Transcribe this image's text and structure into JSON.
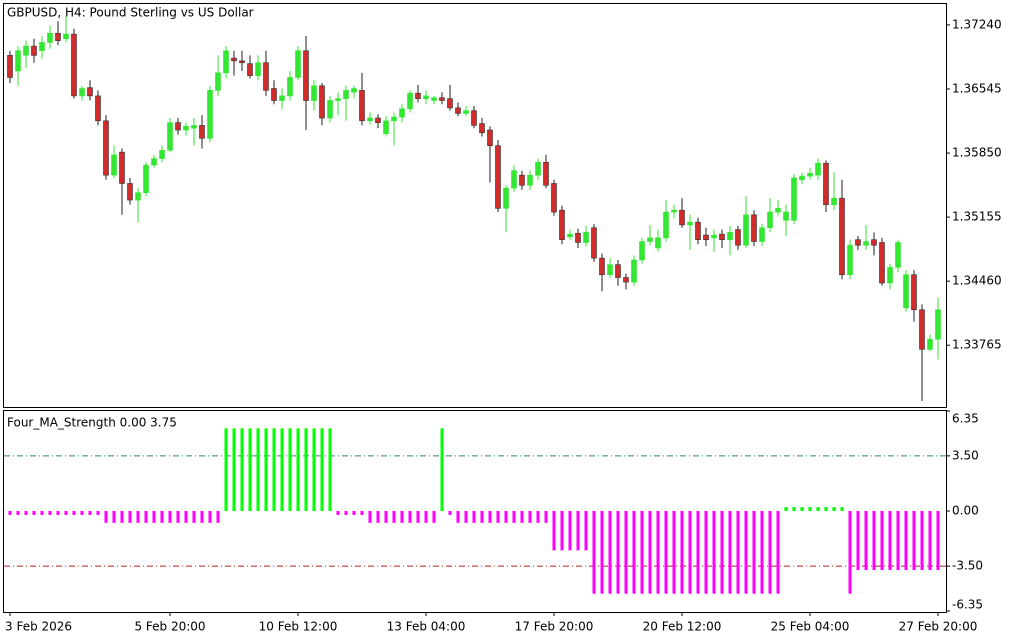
{
  "chart_data": [
    {
      "type": "candlestick",
      "title": "GBPUSD, H4:  Pound Sterling vs US Dollar",
      "categories": [
        "3 Feb 2026",
        null,
        null,
        null,
        null,
        null,
        null,
        null,
        null,
        null,
        null,
        null,
        null,
        null,
        null,
        null,
        null,
        null,
        null,
        null,
        "5 Feb 20:00",
        null,
        null,
        null,
        null,
        null,
        null,
        null,
        null,
        null,
        null,
        null,
        null,
        null,
        null,
        null,
        "10 Feb 12:00",
        null,
        null,
        null,
        null,
        null,
        null,
        null,
        null,
        null,
        null,
        null,
        null,
        null,
        null,
        null,
        "13 Feb 04:00",
        null,
        null,
        null,
        null,
        null,
        null,
        null,
        null,
        null,
        null,
        null,
        null,
        null,
        null,
        null,
        "17 Feb 20:00",
        null,
        null,
        null,
        null,
        null,
        null,
        null,
        null,
        null,
        null,
        null,
        null,
        null,
        null,
        null,
        "20 Feb 12:00",
        null,
        null,
        null,
        null,
        null,
        null,
        null,
        null,
        null,
        null,
        null,
        null,
        null,
        null,
        null,
        "25 Feb 04:00",
        null,
        null,
        null,
        null,
        null,
        null,
        null,
        null,
        null,
        null,
        null,
        null,
        null,
        null,
        null,
        "27 Feb 20:00"
      ],
      "open": [
        1.3691,
        1.3674,
        1.3691,
        1.3701,
        1.3696,
        1.3705,
        1.3715,
        1.3709,
        1.3714,
        1.3647,
        1.3656,
        1.3647,
        1.362,
        1.3561,
        1.3586,
        1.3552,
        1.3534,
        1.3542,
        1.3572,
        1.3579,
        1.3588,
        1.3618,
        1.361,
        1.3612,
        1.3615,
        1.3601,
        1.3653,
        1.3672,
        1.3688,
        1.3685,
        1.3682,
        1.3669,
        1.3683,
        1.3655,
        1.3642,
        1.3647,
        1.3667,
        1.3696,
        1.3642,
        1.3658,
        1.3623,
        1.3642,
        1.3644,
        1.3651,
        1.3653,
        1.362,
        1.3623,
        1.3606,
        1.362,
        1.3624,
        1.3633,
        1.365,
        1.3644,
        1.3642,
        1.3645,
        1.3644,
        1.3634,
        1.3628,
        1.3631,
        1.3617,
        1.361,
        1.3593,
        1.3525,
        1.3547,
        1.3561,
        1.355,
        1.3561,
        1.3575,
        1.3552,
        1.3523,
        1.3494,
        1.3498,
        1.3488,
        1.3504,
        1.3471,
        1.3453,
        1.3464,
        1.345,
        1.3445,
        1.3469,
        1.3489,
        1.3482,
        1.3493,
        1.3521,
        1.3523,
        1.3507,
        1.351,
        1.3496,
        1.3493,
        1.3497,
        1.3491,
        1.3502,
        1.3485,
        1.3518,
        1.3489,
        1.3504,
        1.3521,
        1.3512,
        1.3512,
        1.3556,
        1.356,
        1.3561,
        1.3574,
        1.3529,
        1.3536,
        1.3453,
        1.3491,
        1.3485,
        1.3491,
        1.3488,
        1.3444,
        1.3461,
        1.3417,
        1.3453,
        1.3415,
        1.3372,
        1.3383
      ],
      "high": [
        1.3696,
        1.3701,
        1.3707,
        1.3709,
        1.3712,
        1.3723,
        1.3728,
        1.3734,
        1.372,
        1.3658,
        1.3664,
        1.3653,
        1.3626,
        1.3593,
        1.359,
        1.3558,
        1.3547,
        1.3575,
        1.3583,
        1.3593,
        1.3623,
        1.3623,
        1.3618,
        1.3623,
        1.3626,
        1.3658,
        1.3691,
        1.3701,
        1.3696,
        1.3696,
        1.3691,
        1.3691,
        1.3696,
        1.3664,
        1.3655,
        1.3674,
        1.3701,
        1.3712,
        1.3664,
        1.3661,
        1.3647,
        1.3651,
        1.3658,
        1.3658,
        1.3672,
        1.3629,
        1.3627,
        1.3625,
        1.3629,
        1.3638,
        1.3653,
        1.3659,
        1.3653,
        1.3647,
        1.3651,
        1.3659,
        1.364,
        1.3636,
        1.3636,
        1.3623,
        1.3614,
        1.3599,
        1.355,
        1.3572,
        1.3566,
        1.3566,
        1.3579,
        1.3583,
        1.3556,
        1.3528,
        1.3502,
        1.3503,
        1.3506,
        1.3508,
        1.3476,
        1.3471,
        1.3469,
        1.3454,
        1.3474,
        1.3493,
        1.3507,
        1.3502,
        1.3534,
        1.3529,
        1.3536,
        1.3518,
        1.3515,
        1.3504,
        1.3502,
        1.3502,
        1.3506,
        1.3506,
        1.3538,
        1.3523,
        1.3508,
        1.3536,
        1.3534,
        1.3529,
        1.3562,
        1.3564,
        1.3569,
        1.3579,
        1.3577,
        1.3564,
        1.3556,
        1.3491,
        1.3495,
        1.3507,
        1.3499,
        1.3493,
        1.3465,
        1.3491,
        1.3458,
        1.3458,
        1.3421,
        1.3388,
        1.3428
      ],
      "low": [
        1.3661,
        1.3658,
        1.3677,
        1.3683,
        1.3687,
        1.3698,
        1.3702,
        1.3705,
        1.3644,
        1.3642,
        1.3642,
        1.3615,
        1.3556,
        1.3558,
        1.3518,
        1.3529,
        1.351,
        1.3538,
        1.3569,
        1.3575,
        1.3586,
        1.3605,
        1.3604,
        1.3593,
        1.359,
        1.3597,
        1.3647,
        1.3666,
        1.3669,
        1.3674,
        1.3666,
        1.3664,
        1.3647,
        1.3638,
        1.3633,
        1.3642,
        1.3664,
        1.361,
        1.3631,
        1.3615,
        1.3618,
        1.3626,
        1.362,
        1.3644,
        1.3615,
        1.3616,
        1.3612,
        1.3603,
        1.3593,
        1.3618,
        1.3629,
        1.364,
        1.3638,
        1.3638,
        1.3638,
        1.3631,
        1.3625,
        1.3625,
        1.3612,
        1.3603,
        1.3553,
        1.3521,
        1.3499,
        1.3543,
        1.3545,
        1.3545,
        1.3556,
        1.3547,
        1.3517,
        1.3486,
        1.3491,
        1.3482,
        1.3484,
        1.3467,
        1.3435,
        1.345,
        1.3441,
        1.3437,
        1.3441,
        1.3465,
        1.3485,
        1.3478,
        1.3489,
        1.3514,
        1.3504,
        1.348,
        1.3486,
        1.3484,
        1.3478,
        1.3482,
        1.3474,
        1.348,
        1.3482,
        1.3484,
        1.3484,
        1.3499,
        1.3517,
        1.3495,
        1.3508,
        1.3551,
        1.3556,
        1.3556,
        1.3521,
        1.3523,
        1.3448,
        1.3448,
        1.348,
        1.348,
        1.3474,
        1.3441,
        1.3437,
        1.3456,
        1.3413,
        1.3402,
        1.3316,
        1.337,
        1.3361
      ],
      "close": [
        1.3667,
        1.3696,
        1.3701,
        1.3691,
        1.3705,
        1.3715,
        1.3707,
        1.3714,
        1.3647,
        1.3655,
        1.3647,
        1.362,
        1.3561,
        1.3583,
        1.3552,
        1.3534,
        1.3542,
        1.3572,
        1.3579,
        1.3588,
        1.3618,
        1.361,
        1.3614,
        1.3615,
        1.3601,
        1.3653,
        1.3672,
        1.3696,
        1.3685,
        1.3683,
        1.3669,
        1.3683,
        1.3653,
        1.3642,
        1.3647,
        1.3667,
        1.3696,
        1.3642,
        1.3658,
        1.3623,
        1.3642,
        1.3644,
        1.3653,
        1.3655,
        1.362,
        1.3623,
        1.3618,
        1.362,
        1.3624,
        1.3633,
        1.365,
        1.3644,
        1.3647,
        1.3645,
        1.3642,
        1.3634,
        1.3628,
        1.3631,
        1.3615,
        1.3607,
        1.3593,
        1.3525,
        1.3547,
        1.3566,
        1.355,
        1.3561,
        1.3575,
        1.355,
        1.3521,
        1.3491,
        1.3497,
        1.3488,
        1.3499,
        1.3471,
        1.3453,
        1.3464,
        1.345,
        1.3445,
        1.3469,
        1.3489,
        1.3493,
        1.3493,
        1.3521,
        1.3523,
        1.3507,
        1.351,
        1.3491,
        1.3491,
        1.3496,
        1.3491,
        1.3499,
        1.3485,
        1.3518,
        1.3489,
        1.3504,
        1.3521,
        1.3525,
        1.3521,
        1.3558,
        1.356,
        1.3563,
        1.3574,
        1.3529,
        1.3536,
        1.3453,
        1.3485,
        1.3485,
        1.3489,
        1.3485,
        1.3444,
        1.3461,
        1.3488,
        1.3453,
        1.3415,
        1.3372,
        1.3383,
        1.3415
      ],
      "up_color": "#32e632",
      "down_color": "#d42a2a",
      "ylim": [
        1.33095,
        1.37467
      ],
      "yticks": [
        {
          "value": 1.3724,
          "label": "1.37240"
        },
        {
          "value": 1.36545,
          "label": "1.36545"
        },
        {
          "value": 1.3585,
          "label": "1.35850"
        },
        {
          "value": 1.35155,
          "label": "1.35155"
        },
        {
          "value": 1.3446,
          "label": "1.34460"
        },
        {
          "value": 1.33765,
          "label": "1.33765"
        }
      ]
    },
    {
      "type": "bar",
      "title": "Four_MA_Strength 0.00 3.75",
      "values": [
        -0.25,
        -0.25,
        -0.25,
        -0.25,
        -0.25,
        -0.25,
        -0.25,
        -0.25,
        -0.25,
        -0.25,
        -0.25,
        -0.25,
        -0.75,
        -0.75,
        -0.75,
        -0.75,
        -0.75,
        -0.75,
        -0.75,
        -0.75,
        -0.75,
        -0.75,
        -0.75,
        -0.75,
        -0.75,
        -0.75,
        -0.75,
        5.25,
        5.25,
        5.25,
        5.25,
        5.25,
        5.25,
        5.25,
        5.25,
        5.25,
        5.25,
        5.25,
        5.25,
        5.25,
        5.25,
        -0.25,
        -0.25,
        -0.25,
        -0.25,
        -0.75,
        -0.75,
        -0.75,
        -0.75,
        -0.75,
        -0.75,
        -0.75,
        -0.75,
        -0.75,
        5.25,
        -0.25,
        -0.75,
        -0.75,
        -0.75,
        -0.75,
        -0.75,
        -0.75,
        -0.75,
        -0.75,
        -0.75,
        -0.75,
        -0.75,
        -0.75,
        -2.5,
        -2.5,
        -2.5,
        -2.5,
        -2.5,
        -5.25,
        -5.25,
        -5.25,
        -5.25,
        -5.25,
        -5.25,
        -5.25,
        -5.25,
        -5.25,
        -5.25,
        -5.25,
        -5.25,
        -5.25,
        -5.25,
        -5.25,
        -5.25,
        -5.25,
        -5.25,
        -5.25,
        -5.25,
        -5.25,
        -5.25,
        -5.25,
        -5.25,
        0.25,
        0.25,
        0.25,
        0.25,
        0.25,
        0.25,
        0.25,
        0.25,
        -5.25,
        -3.75,
        -3.75,
        -3.75,
        -3.75,
        -3.75,
        -3.75,
        -3.75,
        -3.75,
        -3.75,
        -3.75,
        -3.75
      ],
      "pos_color": "#00ff00",
      "neg_color": "#ff00ff",
      "levels": [
        3.5,
        -3.5
      ],
      "level_colors": [
        "#2e8b57",
        "#b22222"
      ],
      "ylim": [
        -6.35,
        6.35
      ],
      "yticks": [
        6.35,
        {
          "value": 3.5,
          "label": "3.50"
        },
        {
          "value": 0,
          "label": "0.00"
        },
        {
          "value": -3.5,
          "label": "-3.50"
        },
        -6.35
      ]
    }
  ]
}
